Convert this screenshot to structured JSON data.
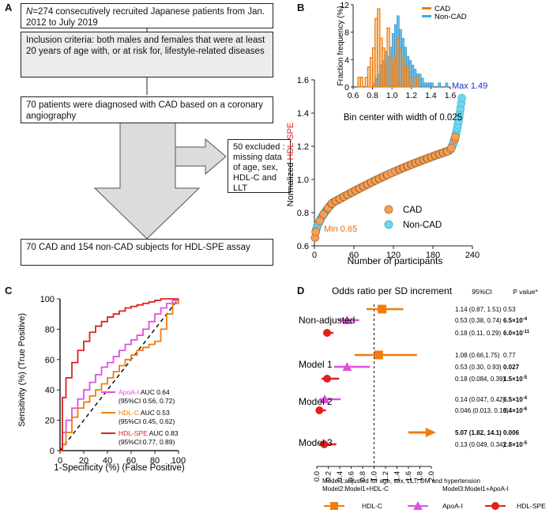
{
  "panels": {
    "a": "A",
    "b": "B",
    "c": "C",
    "d": "D"
  },
  "flowchart": {
    "box1_n": "N",
    "box1_text": "=274 consecutively recruited Japanese patients from Jan. 2012 to July 2019",
    "box2": "Inclusion criteria: both males and females that were at least 20 years of age with, or at risk for, lifestyle-related diseases",
    "box3": "70 patients were diagnosed with CAD based on a coronary angiography",
    "box4": "50 excluded : missing data of age, sex, HDL-C and LLT",
    "box5": "70 CAD and 154 non-CAD subjects for HDL-SPE assay"
  },
  "colors": {
    "cad": "#f0a05a",
    "noncad": "#6fd8f0",
    "hdlc": "#f07c10",
    "apoai": "#e050e0",
    "hdlspe": "#e02020",
    "maxlabel": "#1a2fd0",
    "minlabel": "#e86a10"
  },
  "chart_data": [
    {
      "type": "scatter",
      "ylabel_prefix": "Normalized ",
      "ylabel_highlight": "HDL-SPE",
      "xlabel": "Number of participants",
      "xlim": [
        0,
        240
      ],
      "ylim": [
        0.6,
        1.6
      ],
      "xticks": [
        "0",
        "60",
        "120",
        "180",
        "240"
      ],
      "yticks": [
        "0.6",
        "0.8",
        "1.0",
        "1.2",
        "1.4",
        "1.6"
      ],
      "legend": [
        "CAD",
        "Non-CAD"
      ],
      "annotations": {
        "max": "Max 1.49",
        "min": "Min 0.65"
      },
      "n_participants": 224,
      "max_value": 1.49,
      "min_value": 0.65
    },
    {
      "type": "bar",
      "ylabel": "Fraction frequency (%)",
      "xlabel": "Bin center with width of 0.025",
      "xlim": [
        0.6,
        1.6
      ],
      "ylim": [
        0,
        12
      ],
      "xticks": [
        "0.6",
        "0.8",
        "1.0",
        "1.2",
        "1.4",
        "1.6"
      ],
      "yticks": [
        "0",
        "4",
        "8",
        "12"
      ],
      "legend": [
        "CAD",
        "Non-CAD"
      ],
      "series": [
        {
          "name": "CAD",
          "bin_start": 0.65,
          "values": [
            1.4,
            1.4,
            0,
            1.4,
            2.9,
            4.3,
            5.7,
            10,
            11.4,
            7.1,
            5.7,
            2.9,
            8.6,
            4.3,
            2.9,
            4.3,
            7.1,
            5.7,
            4.3,
            2.9,
            2.9,
            1.4,
            1.4,
            0,
            1.4
          ]
        },
        {
          "name": "Non-CAD",
          "bin_start": 0.65,
          "values": [
            0,
            0,
            0,
            0,
            0,
            0,
            0.6,
            1.3,
            1.9,
            3.2,
            3.9,
            5.2,
            4.5,
            5.8,
            7.8,
            9.1,
            10.4,
            8.4,
            7.1,
            5.8,
            4.5,
            3.9,
            3.2,
            2.6,
            1.9,
            1.9,
            1.3,
            0.6,
            0.6,
            0.6,
            0.6,
            0,
            0,
            0.6,
            0,
            0,
            0.6
          ]
        }
      ]
    },
    {
      "type": "line",
      "xlabel": "1-Specificity (%) (False Positive)",
      "ylabel": "Sensitivity (%) (True Positive)",
      "xlim": [
        0,
        100
      ],
      "ylim": [
        0,
        100
      ],
      "xticks": [
        "0",
        "20",
        "40",
        "60",
        "80",
        "100"
      ],
      "yticks": [
        "0",
        "20",
        "40",
        "60",
        "80",
        "100"
      ],
      "series": [
        {
          "name": "ApoA-I",
          "auc_text": " AUC 0.64",
          "ci": "(95%CI 0.56, 0.72)",
          "x": [
            0,
            2,
            5,
            10,
            15,
            20,
            25,
            30,
            35,
            40,
            45,
            50,
            55,
            60,
            65,
            70,
            75,
            80,
            85,
            90,
            95,
            100
          ],
          "y": [
            0,
            12,
            20,
            28,
            34,
            40,
            45,
            50,
            55,
            58,
            62,
            66,
            70,
            73,
            76,
            80,
            85,
            90,
            94,
            97,
            99,
            100
          ]
        },
        {
          "name": "HDL-C",
          "auc_text": " AUC 0.53",
          "ci": "(95%CI 0.45, 0.62)",
          "x": [
            0,
            2,
            5,
            10,
            15,
            20,
            25,
            30,
            35,
            40,
            45,
            50,
            55,
            60,
            65,
            70,
            75,
            80,
            85,
            90,
            95,
            100
          ],
          "y": [
            0,
            4,
            12,
            22,
            28,
            32,
            36,
            40,
            44,
            48,
            52,
            56,
            60,
            63,
            66,
            68,
            70,
            72,
            80,
            90,
            97,
            100
          ]
        },
        {
          "name": "HDL-SPE",
          "auc_text": " AUC 0.83",
          "ci": "(95%CI:0.77, 0.89)",
          "x": [
            0,
            2,
            5,
            10,
            15,
            20,
            25,
            30,
            35,
            40,
            45,
            50,
            55,
            60,
            65,
            70,
            75,
            80,
            85,
            90,
            95,
            100
          ],
          "y": [
            0,
            35,
            48,
            58,
            66,
            72,
            78,
            82,
            85,
            88,
            90,
            92,
            94,
            95,
            96,
            97,
            98,
            99,
            100,
            100,
            100,
            100
          ]
        }
      ]
    },
    {
      "type": "scatter",
      "title": "Odds ratio per SD increment",
      "col_ci": "95%CI",
      "col_p": "P value*",
      "xlim": [
        0,
        2.0
      ],
      "xticks": [
        "0.0",
        "0.2",
        "0.4",
        "0.6",
        "0.8",
        "1.0",
        "1.2",
        "1.4",
        "1.6",
        "1.8",
        "2.0"
      ],
      "reference_line": 1.0,
      "groups": [
        "Non-adjusted",
        "Model 1",
        "Model 2",
        "Model 3"
      ],
      "rows": [
        {
          "group": "Non-adjusted",
          "marker": "HDL-C",
          "or": 1.14,
          "lo": 0.87,
          "hi": 1.51,
          "ci": "1.14 (0.87, 1.51)",
          "p_base": "0.53",
          "p_exp": "",
          "bold": false
        },
        {
          "group": "Non-adjusted",
          "marker": "ApoA-I",
          "or": 0.53,
          "lo": 0.38,
          "hi": 0.74,
          "ci": "0.53 (0.38, 0.74)",
          "p_base": "6.5×10",
          "p_exp": "-4",
          "bold": true
        },
        {
          "group": "Non-adjusted",
          "marker": "HDL-SPE",
          "or": 0.18,
          "lo": 0.11,
          "hi": 0.29,
          "ci": "0.18 (0.11, 0.29)",
          "p_base": "6.0×10",
          "p_exp": "-11",
          "bold": true
        },
        {
          "group": "Model 1",
          "marker": "HDL-C",
          "or": 1.08,
          "lo": 0.66,
          "hi": 1.75,
          "ci": "1.08 (0.66,1.75)",
          "p_base": "0.77",
          "p_exp": "",
          "bold": false
        },
        {
          "group": "Model 1",
          "marker": "ApoA-I",
          "or": 0.53,
          "lo": 0.3,
          "hi": 0.93,
          "ci": "0.53 (0.30, 0.93)",
          "p_base": "0.027",
          "p_exp": "",
          "bold": true
        },
        {
          "group": "Model 1",
          "marker": "HDL-SPE",
          "or": 0.18,
          "lo": 0.084,
          "hi": 0.39,
          "ci": "0.18 (0.084, 0.39)",
          "p_base": "1.5×10",
          "p_exp": "-5",
          "bold": true
        },
        {
          "group": "Model 2",
          "marker": "ApoA-I",
          "or": 0.14,
          "lo": 0.047,
          "hi": 0.42,
          "ci": "0.14 (0.047, 0.42)",
          "p_base": "6.5×10",
          "p_exp": "-4",
          "bold": true
        },
        {
          "group": "Model 2",
          "marker": "HDL-SPE",
          "or": 0.046,
          "lo": 0.013,
          "hi": 0.16,
          "ci": "0.046 (0.013, 0.16)",
          "p_base": "3.4×10",
          "p_exp": "-6",
          "bold": true
        },
        {
          "group": "Model 3",
          "marker": "HDL-C",
          "or": 5.07,
          "lo": 1.82,
          "hi": 14.1,
          "ci": "5.07 (1.82, 14.1)",
          "p_base": "0.006",
          "p_exp": "",
          "bold": true
        },
        {
          "group": "Model 3",
          "marker": "HDL-SPE",
          "or": 0.13,
          "lo": 0.049,
          "hi": 0.34,
          "ci": "0.13 (0.049, 0.34)",
          "p_base": "2.8×10",
          "p_exp": "-5",
          "bold": true
        }
      ],
      "footnote1": "Model1:adjusted for age, sex, LLT, DM and hypertension",
      "footnote2": "Model2:Model1+HDL-C",
      "footnote3": "Model3:Model1+ApoA-I",
      "legend": [
        "HDL-C",
        "ApoA-I",
        "HDL-SPE"
      ]
    }
  ]
}
